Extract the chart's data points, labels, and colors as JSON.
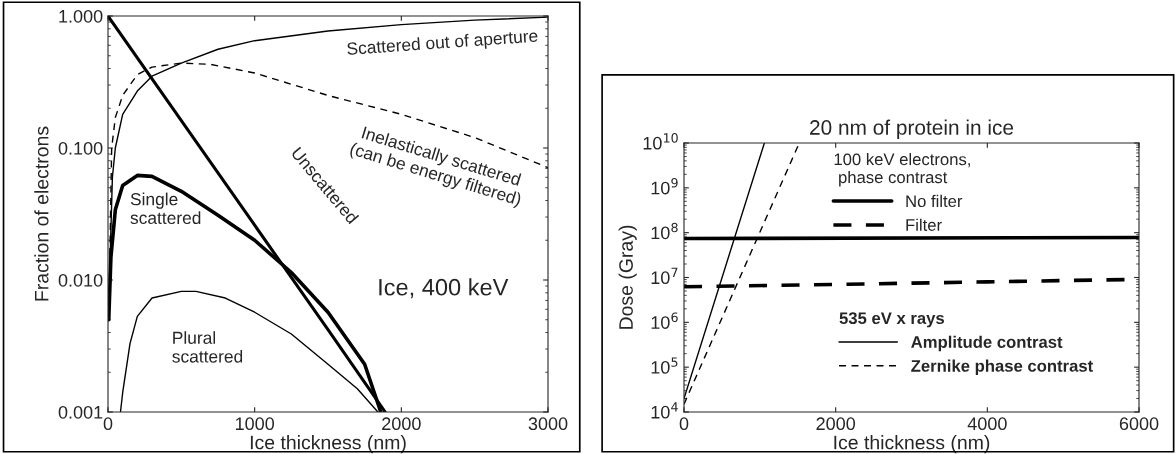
{
  "chart_data": [
    {
      "type": "line",
      "xlabel": "Ice thickness (nm)",
      "ylabel": "Fraction of electrons",
      "log": "y",
      "xlim": [
        0,
        3000
      ],
      "xticks": [
        0,
        1000,
        2000,
        3000
      ],
      "ylim": [
        0.001,
        1
      ],
      "yticks": [
        {
          "value": 0.001,
          "label": "0.001"
        },
        {
          "value": 0.01,
          "label": "0.010"
        },
        {
          "value": 0.1,
          "label": "0.100"
        },
        {
          "value": 1,
          "label": "1.000"
        }
      ],
      "grid": false,
      "annotations": [
        "Ice, 400 keV"
      ],
      "series": [
        {
          "name": "Scattered out of aperture",
          "color": "#000000",
          "line_style": "solid",
          "x": [
            10,
            30,
            50,
            100,
            200,
            300,
            500,
            750,
            1000,
            1500,
            2000,
            2500,
            3000
          ],
          "values": [
            0.01,
            0.06,
            0.1,
            0.18,
            0.27,
            0.35,
            0.44,
            0.56,
            0.65,
            0.77,
            0.86,
            0.93,
            0.98
          ]
        },
        {
          "name": "Inelastically scattered\n(can be energy filtered)",
          "color": "#000000",
          "line_style": "dashed",
          "x": [
            10,
            25,
            50,
            100,
            200,
            300,
            500,
            700,
            1000,
            1500,
            2000,
            2500,
            3000
          ],
          "values": [
            0.01,
            0.1,
            0.17,
            0.25,
            0.36,
            0.41,
            0.44,
            0.43,
            0.37,
            0.25,
            0.18,
            0.12,
            0.071
          ]
        },
        {
          "name": "Unscattered",
          "color": "#000000",
          "line_style": "solid",
          "x": [
            0,
            500,
            1000,
            1500,
            1890
          ],
          "values": [
            1,
            0.161,
            0.026,
            0.0042,
            0.001
          ]
        },
        {
          "name": "Single\nscattered",
          "color": "#000000",
          "line_style": "solid",
          "x": [
            5,
            20,
            50,
            100,
            200,
            300,
            500,
            750,
            1000,
            1250,
            1500,
            1750,
            1860
          ],
          "values": [
            0.005,
            0.015,
            0.034,
            0.052,
            0.062,
            0.061,
            0.047,
            0.031,
            0.02,
            0.0114,
            0.0057,
            0.0023,
            0.001
          ]
        },
        {
          "name": "Plural\nscattered",
          "color": "#000000",
          "line_style": "solid",
          "x": [
            85,
            100,
            150,
            200,
            300,
            500,
            600,
            800,
            1000,
            1250,
            1500,
            1700,
            1840
          ],
          "values": [
            0.001,
            0.0014,
            0.0033,
            0.0053,
            0.0073,
            0.0082,
            0.0082,
            0.0073,
            0.0057,
            0.0039,
            0.0023,
            0.0015,
            0.001
          ]
        }
      ]
    },
    {
      "type": "line",
      "title": "20 nm of protein in ice",
      "xlabel": "Ice thickness (nm)",
      "ylabel": "Dose (Gray)",
      "log": "y",
      "xlim": [
        0,
        6000
      ],
      "xticks": [
        0,
        2000,
        4000,
        6000
      ],
      "ylim": [
        10000,
        10000000000
      ],
      "yticks": [
        {
          "value": 10000,
          "label": "10$^{4}$"
        },
        {
          "value": 100000,
          "label": "10$^{5}$"
        },
        {
          "value": 1000000,
          "label": "10$^{6}$"
        },
        {
          "value": 10000000,
          "label": "10$^{7}$"
        },
        {
          "value": 100000000,
          "label": "10$^{8}$"
        },
        {
          "value": 1000000000,
          "label": "10$^{9}$"
        },
        {
          "value": 10000000000,
          "label": "10$^{10}$"
        }
      ],
      "grid": false,
      "legend": "center",
      "annotations": [
        "100 keV electrons,\n phase contrast",
        "535 eV x rays"
      ],
      "series": [
        {
          "name": "No filter",
          "color": "#000000",
          "line_style": "solid",
          "x": [
            0,
            6000
          ],
          "values": [
            74000000,
            78000000
          ]
        },
        {
          "name": "Filter",
          "color": "#000000",
          "line_style": "dashed",
          "x": [
            0,
            2000,
            4000,
            6000
          ],
          "values": [
            6200000,
            7000000,
            8000000,
            9100000
          ]
        },
        {
          "name": "Amplitude contrast",
          "color": "#000000",
          "line_style": "solid",
          "x": [
            0,
            1060
          ],
          "values": [
            20000,
            10000000000
          ]
        },
        {
          "name": "Zernike phase contrast",
          "color": "#000000",
          "line_style": "dashed",
          "x": [
            0,
            1520
          ],
          "values": [
            15000,
            10000000000
          ]
        }
      ]
    }
  ]
}
